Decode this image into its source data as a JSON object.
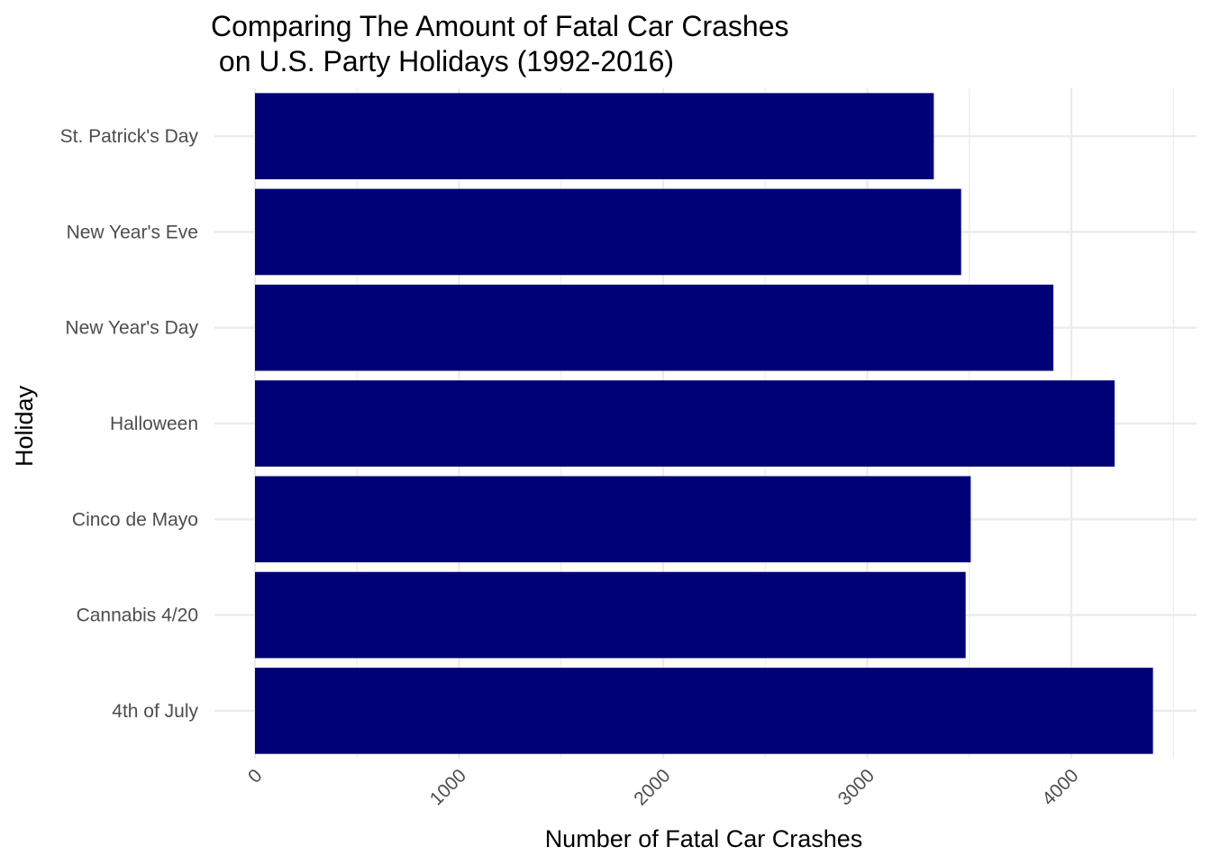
{
  "chart_data": {
    "type": "bar",
    "orientation": "horizontal",
    "title": [
      "Comparing The Amount of Fatal Car Crashes",
      " on U.S. Party Holidays (1992-2016)"
    ],
    "xlabel": "Number of Fatal Car Crashes",
    "ylabel": "Holiday",
    "categories": [
      "4th of July",
      "Cannabis 4/20",
      "Cinco de Mayo",
      "Halloween",
      "New Year's Day",
      "New Year's Eve",
      "St. Patrick's Day"
    ],
    "values": [
      4400,
      3482,
      3507,
      4212,
      3912,
      3460,
      3326
    ],
    "xlim": [
      0,
      4520
    ],
    "xticks": [
      0,
      1000,
      2000,
      3000,
      4000
    ],
    "xtick_labels": [
      "0",
      "1000",
      "2000",
      "3000",
      "4000"
    ],
    "bar_color": "#000077",
    "grid": true,
    "legend": "none"
  }
}
